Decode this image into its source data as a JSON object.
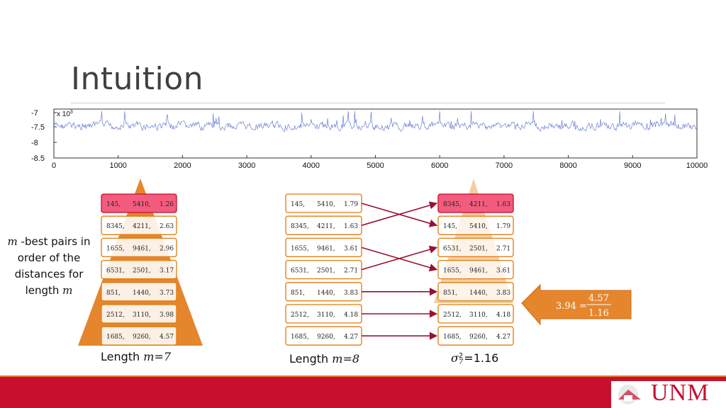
{
  "slide": {
    "title": "Intuition",
    "side_label_part1": "-best pairs in order of the distances for length",
    "side_label_var": "m",
    "caption_left": "Length ",
    "caption_left_math": "m=7",
    "caption_mid": "Length ",
    "caption_mid_math": "m=8",
    "caption_right": "=1.16",
    "caption_right_sigma": "σ",
    "caption_right_sup": "2",
    "caption_right_sub": "7",
    "callout_lhs": "3.94 =",
    "callout_num": "4.57",
    "callout_den": "1.16",
    "logo": "UNM",
    "colors": {
      "accent_orange": "#e5862d",
      "highlight_pink": "#f35b7f",
      "arrow_red": "#9b1030",
      "footer_red": "#c8102e"
    }
  },
  "chart_data": {
    "type": "line",
    "exponent_label": "x 10",
    "exponent_sup": "3",
    "x_ticks": [
      "0",
      "1000",
      "2000",
      "3000",
      "4000",
      "5000",
      "6000",
      "7000",
      "8000",
      "9000",
      "10000"
    ],
    "y_ticks": [
      "-7",
      "-7.5",
      "-8",
      "-8.5"
    ],
    "xlim": [
      0,
      10000
    ],
    "ylim": [
      -8.5,
      -7
    ],
    "series_color": "#6b7fd7"
  },
  "tables": {
    "left": [
      [
        "145,",
        "5410,",
        "1.26"
      ],
      [
        "8345,",
        "4211,",
        "2.63"
      ],
      [
        "1655,",
        "9461,",
        "2.96"
      ],
      [
        "6531,",
        "2501,",
        "3.17"
      ],
      [
        "851,",
        "1440,",
        "3.73"
      ],
      [
        "2512,",
        "3110,",
        "3.98"
      ],
      [
        "1685,",
        "9260,",
        "4.57"
      ]
    ],
    "middle": [
      [
        "145,",
        "5410,",
        "1.79"
      ],
      [
        "8345,",
        "4211,",
        "1.63"
      ],
      [
        "1655,",
        "9461,",
        "3.61"
      ],
      [
        "6531,",
        "2501,",
        "2.71"
      ],
      [
        "851,",
        "1440,",
        "3.83"
      ],
      [
        "2512,",
        "3110,",
        "4.18"
      ],
      [
        "1685,",
        "9260,",
        "4.27"
      ]
    ],
    "right": [
      [
        "8345,",
        "4211,",
        "1.63"
      ],
      [
        "145,",
        "5410,",
        "1.79"
      ],
      [
        "6531,",
        "2501,",
        "2.71"
      ],
      [
        "1655,",
        "9461,",
        "3.61"
      ],
      [
        "851,",
        "1440,",
        "3.83"
      ],
      [
        "2512,",
        "3110,",
        "4.18"
      ],
      [
        "1685,",
        "9260,",
        "4.27"
      ]
    ],
    "mapping": [
      1,
      0,
      3,
      2,
      4,
      5,
      6
    ]
  }
}
